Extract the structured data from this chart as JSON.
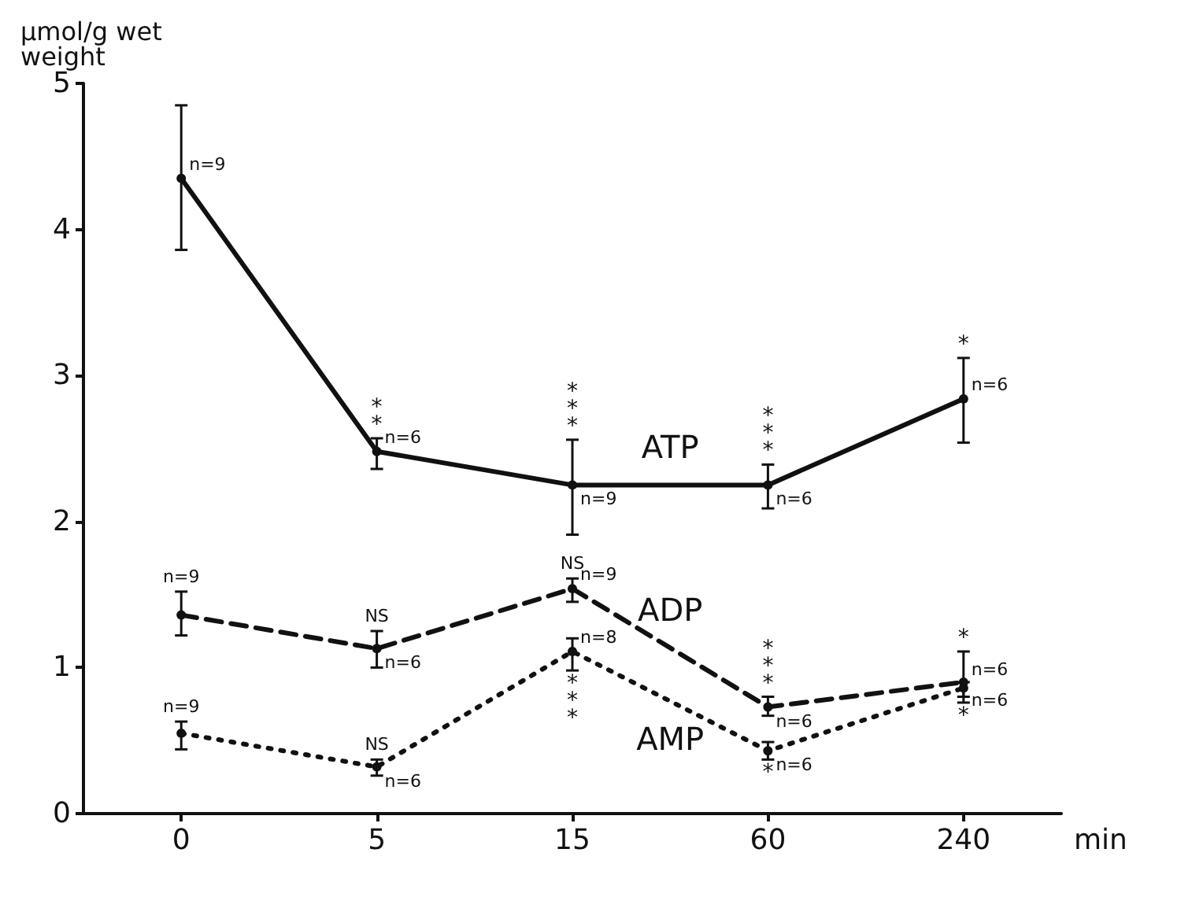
{
  "chart_data": {
    "type": "line",
    "ylabel": "µmol/g wet\nweight",
    "xlabel": "min",
    "categories": [
      "0",
      "5",
      "15",
      "60",
      "240"
    ],
    "ylim": [
      0,
      5
    ],
    "yticks": [
      0,
      1,
      2,
      3,
      4,
      5
    ],
    "grid": false,
    "legend": false,
    "marker": "circle",
    "series": [
      {
        "name": "ATP",
        "color": "#111111",
        "line_style": "solid",
        "values": [
          4.35,
          2.48,
          2.25,
          2.25,
          2.84
        ],
        "errors": [
          [
            3.86,
            4.85
          ],
          [
            2.36,
            2.57
          ],
          [
            1.91,
            2.56
          ],
          [
            2.09,
            2.39
          ],
          [
            2.54,
            3.12
          ]
        ]
      },
      {
        "name": "ADP",
        "color": "#111111",
        "line_style": "dashed",
        "values": [
          1.36,
          1.13,
          1.54,
          0.73,
          0.9
        ],
        "errors": [
          [
            1.22,
            1.52
          ],
          [
            1.0,
            1.25
          ],
          [
            1.45,
            1.61
          ],
          [
            0.67,
            0.8
          ],
          [
            0.8,
            1.11
          ]
        ]
      },
      {
        "name": "AMP",
        "color": "#111111",
        "line_style": "dotted",
        "values": [
          0.55,
          0.32,
          1.11,
          0.43,
          0.86
        ],
        "errors": [
          [
            0.44,
            0.63
          ],
          [
            0.26,
            0.37
          ],
          [
            0.98,
            1.2
          ],
          [
            0.37,
            0.49
          ],
          [
            0.76,
            0.9
          ]
        ]
      }
    ],
    "annotations": [
      {
        "text": "n=9",
        "x": "0",
        "y": 4.35
      },
      {
        "text": "n=6",
        "x": "5",
        "y": 2.48
      },
      {
        "text": "n=9",
        "x": "15",
        "y": 2.25
      },
      {
        "text": "n=6",
        "x": "60",
        "y": 2.25
      },
      {
        "text": "n=6",
        "x": "240",
        "y": 2.84
      },
      {
        "text": "**",
        "x": "5",
        "y": 2.57
      },
      {
        "text": "***",
        "x": "15",
        "y": 2.56
      },
      {
        "text": "***",
        "x": "60",
        "y": 2.39
      },
      {
        "text": "*",
        "x": "240",
        "y": 3.12
      },
      {
        "text": "n=9",
        "x": "0",
        "y": 1.52
      },
      {
        "text": "NS",
        "x": "5",
        "y": 1.25
      },
      {
        "text": "n=6",
        "x": "5",
        "y": 1.13
      },
      {
        "text": "NS",
        "x": "15",
        "y": 1.61
      },
      {
        "text": "n=9",
        "x": "15",
        "y": 1.54
      },
      {
        "text": "***",
        "x": "60",
        "y": 0.8
      },
      {
        "text": "n=6",
        "x": "60",
        "y": 0.73
      },
      {
        "text": "*",
        "x": "240",
        "y": 1.11
      },
      {
        "text": "n=6",
        "x": "240",
        "y": 0.9
      },
      {
        "text": "n=9",
        "x": "0",
        "y": 0.63
      },
      {
        "text": "NS",
        "x": "5",
        "y": 0.37
      },
      {
        "text": "n=6",
        "x": "5",
        "y": 0.32
      },
      {
        "text": "n=8",
        "x": "15",
        "y": 1.11
      },
      {
        "text": "***",
        "x": "15",
        "y": 0.98
      },
      {
        "text": "n=6",
        "x": "60",
        "y": 0.43
      },
      {
        "text": "*",
        "x": "60",
        "y": 0.37
      },
      {
        "text": "*",
        "x": "240",
        "y": 0.76
      },
      {
        "text": "n=6",
        "x": "240",
        "y": 0.86
      }
    ]
  }
}
